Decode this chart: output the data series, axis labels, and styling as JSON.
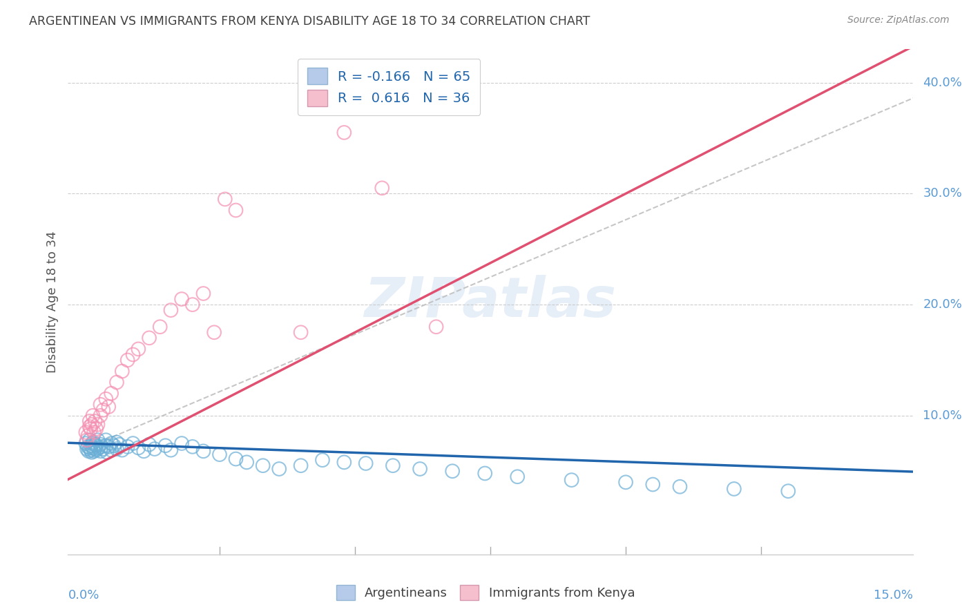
{
  "title": "ARGENTINEAN VS IMMIGRANTS FROM KENYA DISABILITY AGE 18 TO 34 CORRELATION CHART",
  "source": "Source: ZipAtlas.com",
  "ylabel": "Disability Age 18 to 34",
  "blue_color": "#6aaed6",
  "pink_color": "#f48fb1",
  "blue_line_color": "#2166ac",
  "pink_line_color": "#e05070",
  "ref_line_color": "#c0c0c0",
  "axis_color": "#5b9bd5",
  "watermark": "ZIPatlas",
  "xlim": [
    0.0,
    0.15
  ],
  "ylim": [
    -0.025,
    0.43
  ],
  "arg_x": [
    0.0003,
    0.0005,
    0.0007,
    0.0008,
    0.001,
    0.001,
    0.0012,
    0.0013,
    0.0014,
    0.0015,
    0.0016,
    0.0017,
    0.0018,
    0.002,
    0.002,
    0.0022,
    0.0023,
    0.0025,
    0.0026,
    0.003,
    0.003,
    0.0032,
    0.0035,
    0.004,
    0.004,
    0.0042,
    0.0045,
    0.005,
    0.005,
    0.0055,
    0.006,
    0.006,
    0.0065,
    0.007,
    0.008,
    0.009,
    0.01,
    0.011,
    0.012,
    0.013,
    0.015,
    0.016,
    0.018,
    0.02,
    0.022,
    0.025,
    0.028,
    0.03,
    0.033,
    0.036,
    0.04,
    0.044,
    0.048,
    0.052,
    0.057,
    0.062,
    0.068,
    0.074,
    0.08,
    0.09,
    0.1,
    0.105,
    0.11,
    0.12,
    0.13
  ],
  "arg_y": [
    0.075,
    0.07,
    0.072,
    0.068,
    0.071,
    0.078,
    0.069,
    0.073,
    0.067,
    0.075,
    0.071,
    0.076,
    0.068,
    0.074,
    0.07,
    0.073,
    0.069,
    0.078,
    0.071,
    0.074,
    0.068,
    0.072,
    0.07,
    0.078,
    0.073,
    0.067,
    0.072,
    0.075,
    0.069,
    0.073,
    0.076,
    0.07,
    0.074,
    0.069,
    0.072,
    0.075,
    0.071,
    0.068,
    0.074,
    0.07,
    0.073,
    0.069,
    0.075,
    0.072,
    0.068,
    0.065,
    0.061,
    0.058,
    0.055,
    0.052,
    0.055,
    0.06,
    0.058,
    0.057,
    0.055,
    0.052,
    0.05,
    0.048,
    0.045,
    0.042,
    0.04,
    0.038,
    0.036,
    0.034,
    0.032
  ],
  "ken_x": [
    0.0003,
    0.0005,
    0.0007,
    0.001,
    0.001,
    0.0012,
    0.0014,
    0.0016,
    0.0018,
    0.002,
    0.0022,
    0.0025,
    0.003,
    0.003,
    0.0035,
    0.004,
    0.0045,
    0.005,
    0.006,
    0.007,
    0.008,
    0.009,
    0.01,
    0.012,
    0.014,
    0.016,
    0.018,
    0.02,
    0.022,
    0.024,
    0.026,
    0.028,
    0.04,
    0.048,
    0.055,
    0.065
  ],
  "ken_y": [
    0.085,
    0.078,
    0.082,
    0.09,
    0.095,
    0.088,
    0.092,
    0.1,
    0.085,
    0.095,
    0.088,
    0.092,
    0.1,
    0.11,
    0.105,
    0.115,
    0.108,
    0.12,
    0.13,
    0.14,
    0.15,
    0.155,
    0.16,
    0.17,
    0.18,
    0.195,
    0.205,
    0.2,
    0.21,
    0.175,
    0.295,
    0.285,
    0.175,
    0.355,
    0.305,
    0.18
  ]
}
